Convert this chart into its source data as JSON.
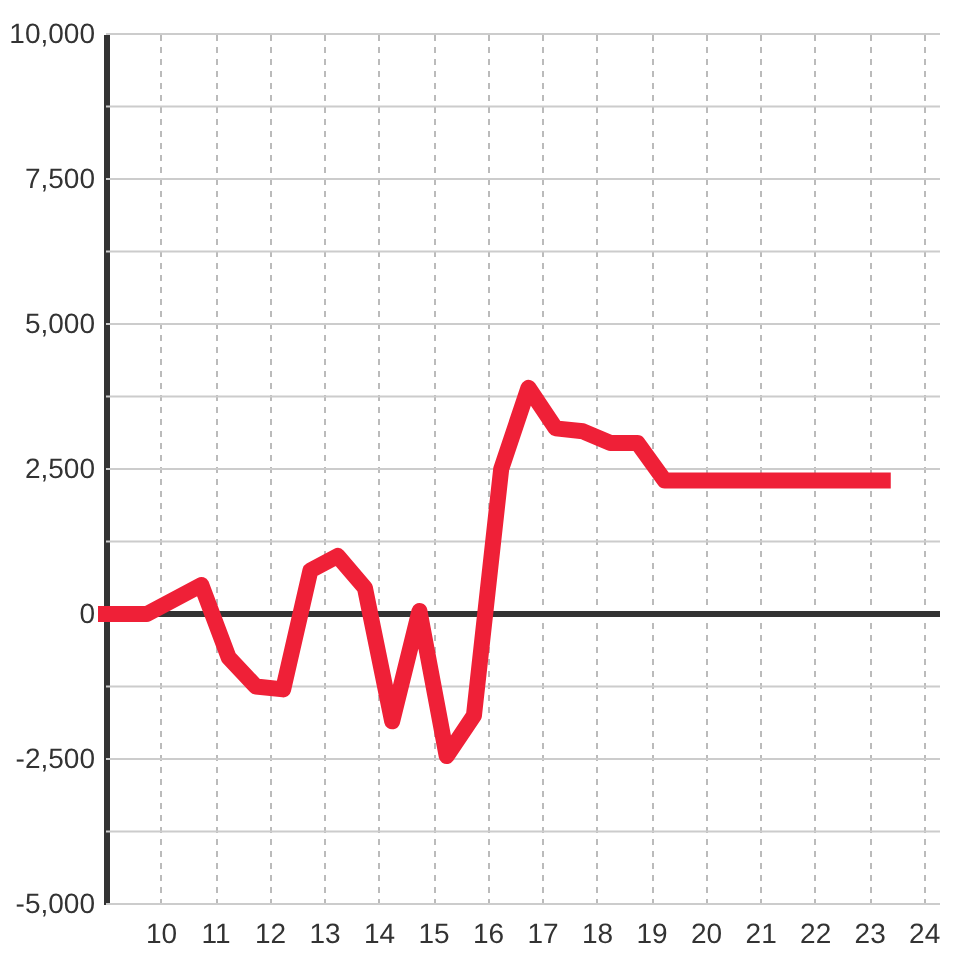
{
  "chart_data": {
    "type": "line",
    "x": [
      9,
      9.75,
      10.75,
      11.25,
      11.75,
      12.25,
      12.75,
      13.25,
      13.75,
      14.25,
      14.75,
      15.25,
      15.75,
      16.25,
      16.75,
      17.25,
      17.75,
      18.25,
      18.75,
      19.25,
      23.25
    ],
    "series": [
      {
        "color": "#ef2037",
        "values": [
          0,
          0,
          500,
          -750,
          -1250,
          -1300,
          750,
          1000,
          450,
          -1850,
          50,
          -2450,
          -1750,
          2500,
          3900,
          3200,
          3150,
          2950,
          2950,
          2300,
          2300
        ]
      }
    ],
    "xlim": [
      9,
      24.3
    ],
    "xticks": [
      10,
      11,
      12,
      13,
      14,
      15,
      16,
      17,
      18,
      19,
      20,
      21,
      22,
      23,
      24
    ],
    "ylim": [
      -5000,
      10000
    ],
    "yticks": [
      {
        "value": -5000,
        "label": "-5,000"
      },
      {
        "value": -3750,
        "label": null
      },
      {
        "value": -2500,
        "label": "-2,500"
      },
      {
        "value": -1250,
        "label": null
      },
      0,
      {
        "value": 1250,
        "label": null
      },
      {
        "value": 2500,
        "label": "2,500"
      },
      {
        "value": 3750,
        "label": null
      },
      {
        "value": 5000,
        "label": "5,000"
      },
      {
        "value": 6250,
        "label": null
      },
      {
        "value": 7500,
        "label": "7,500"
      },
      {
        "value": 8750,
        "label": null
      },
      {
        "value": 10000,
        "label": "10,000"
      }
    ],
    "grid": true,
    "line_style": "solid",
    "ref_lines": [
      {
        "axis": "y",
        "value": 0,
        "color": "#333333"
      }
    ]
  }
}
